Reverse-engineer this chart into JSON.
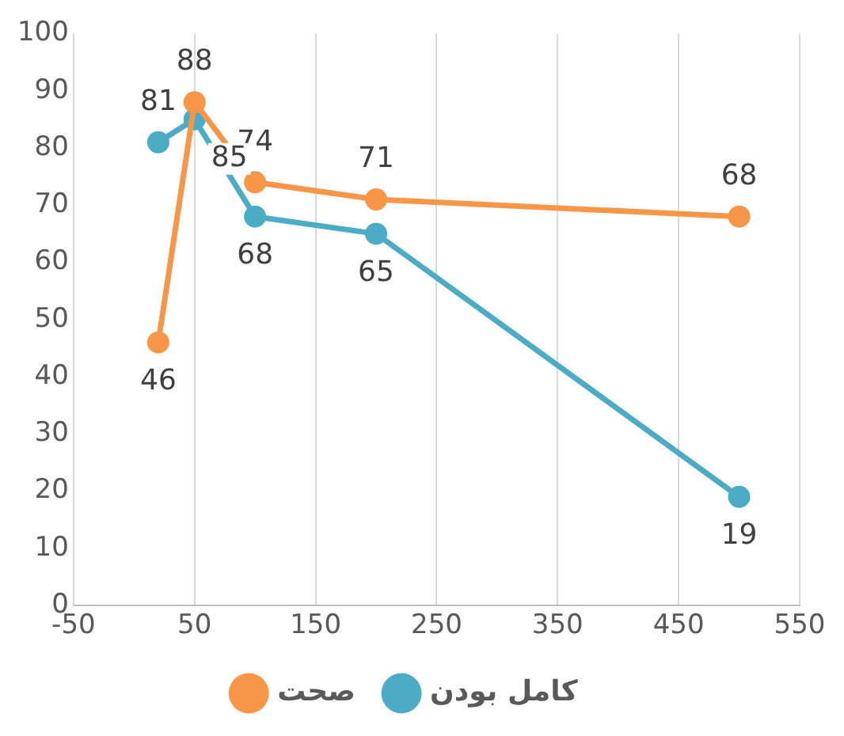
{
  "chart_data": {
    "type": "line",
    "x": [
      20,
      50,
      100,
      200,
      500
    ],
    "series": [
      {
        "name": "صحت",
        "color": "#f79646",
        "values": [
          46,
          88,
          74,
          71,
          68
        ]
      },
      {
        "name": "کامل بودن",
        "color": "#4bacc6",
        "values": [
          81,
          85,
          68,
          65,
          19
        ]
      }
    ],
    "xlim": [
      -50,
      550
    ],
    "xticks": [
      -50,
      50,
      150,
      250,
      350,
      450,
      550
    ],
    "ylim": [
      0,
      100
    ],
    "yticks": [
      0,
      10,
      20,
      30,
      40,
      50,
      60,
      70,
      80,
      90,
      100
    ],
    "grid": "x",
    "legend": "bottom",
    "data_labels": true,
    "marker": "circle",
    "line_style": "solid"
  }
}
